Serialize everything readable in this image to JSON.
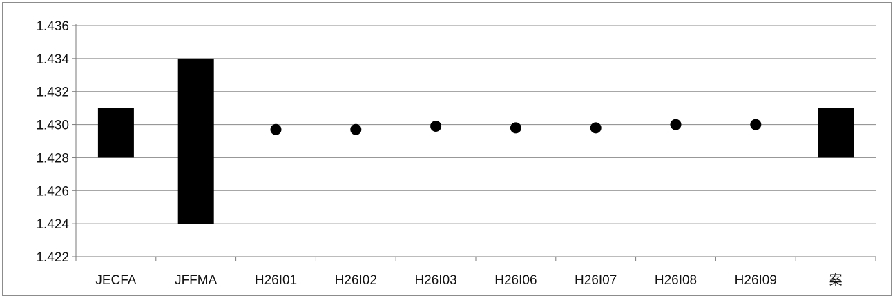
{
  "chart_data": {
    "type": "bar",
    "subtype": "floating-range-with-points",
    "categories": [
      "JECFA",
      "JFFMA",
      "H26I01",
      "H26I02",
      "H26I03",
      "H26I06",
      "H26I07",
      "H26I08",
      "H26I09",
      "案"
    ],
    "ranges": [
      {
        "category": "JECFA",
        "low": 1.428,
        "high": 1.431
      },
      {
        "category": "JFFMA",
        "low": 1.424,
        "high": 1.434
      },
      {
        "category": "案",
        "low": 1.428,
        "high": 1.431
      }
    ],
    "points": [
      {
        "category": "H26I01",
        "value": 1.4297
      },
      {
        "category": "H26I02",
        "value": 1.4297
      },
      {
        "category": "H26I03",
        "value": 1.4299
      },
      {
        "category": "H26I06",
        "value": 1.4298
      },
      {
        "category": "H26I07",
        "value": 1.4298
      },
      {
        "category": "H26I08",
        "value": 1.43
      },
      {
        "category": "H26I09",
        "value": 1.43
      }
    ],
    "yticks": [
      "1.422",
      "1.424",
      "1.426",
      "1.428",
      "1.430",
      "1.432",
      "1.434",
      "1.436"
    ],
    "ylim": [
      1.422,
      1.436
    ],
    "grid": true,
    "title": "",
    "xlabel": "",
    "ylabel": "",
    "colors": {
      "marks": "#000000",
      "grid": "#8a8a8a",
      "axis": "#7a7a7a"
    }
  }
}
